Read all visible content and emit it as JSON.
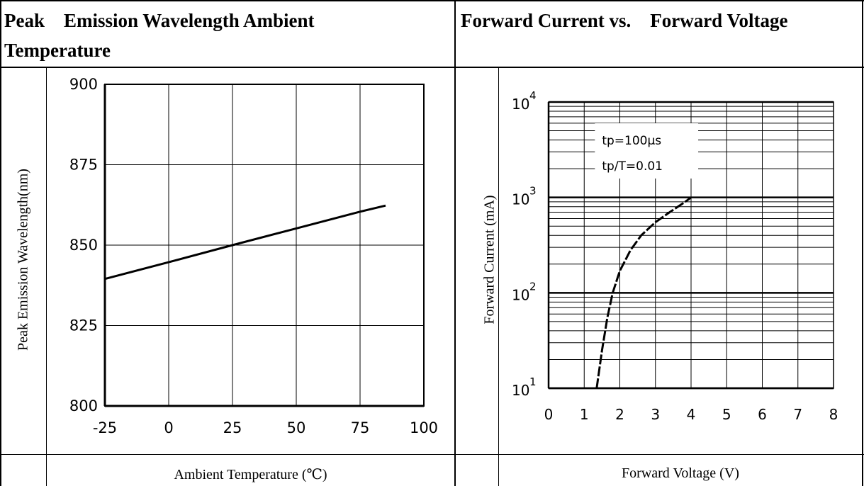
{
  "left_panel": {
    "title_line1": "Peak    Emission Wavelength Ambient",
    "title_line2": "Temperature"
  },
  "right_panel": {
    "title": "Forward Current vs.    Forward Voltage"
  },
  "chart_data": [
    {
      "type": "line",
      "title": "Peak    Emission Wavelength Ambient Temperature",
      "xlabel": "Ambient Temperature (℃)",
      "ylabel": "Peak    Emission Wavelength(nm)",
      "xlim": [
        -25,
        100
      ],
      "ylim": [
        800,
        900
      ],
      "x_ticks": [
        "-25",
        "0",
        "25",
        "50",
        "75",
        "100"
      ],
      "y_ticks": [
        "900",
        "875",
        "850",
        "825",
        "800"
      ],
      "grid": true,
      "series": [
        {
          "x": [
            -25,
            0,
            25,
            50,
            75,
            85
          ],
          "y": [
            839.5,
            844.7,
            850.0,
            855.2,
            860.4,
            862.3
          ]
        }
      ]
    },
    {
      "type": "line",
      "title": "Forward Current vs.    Forward Voltage",
      "xlabel": "Forward Voltage (V)",
      "ylabel": "Forward Current (mA)",
      "xlim": [
        0,
        8
      ],
      "ylim": [
        10,
        10000
      ],
      "yscale": "log",
      "x_ticks": [
        "0",
        "1",
        "2",
        "3",
        "4",
        "5",
        "6",
        "7",
        "8"
      ],
      "y_ticks": [
        {
          "base": "10",
          "exp": "4"
        },
        {
          "base": "10",
          "exp": "3"
        },
        {
          "base": "10",
          "exp": "2"
        },
        {
          "base": "10",
          "exp": "1"
        }
      ],
      "grid": true,
      "annotations": [
        "tp=100μs",
        "tp/T=0.01"
      ],
      "series": [
        {
          "x": [
            1.35,
            1.5,
            1.65,
            1.8,
            2.0,
            2.3,
            2.6,
            3.0,
            3.4,
            3.8,
            4.0
          ],
          "y": [
            10,
            25,
            55,
            100,
            170,
            280,
            400,
            550,
            700,
            880,
            1000
          ]
        }
      ]
    }
  ]
}
